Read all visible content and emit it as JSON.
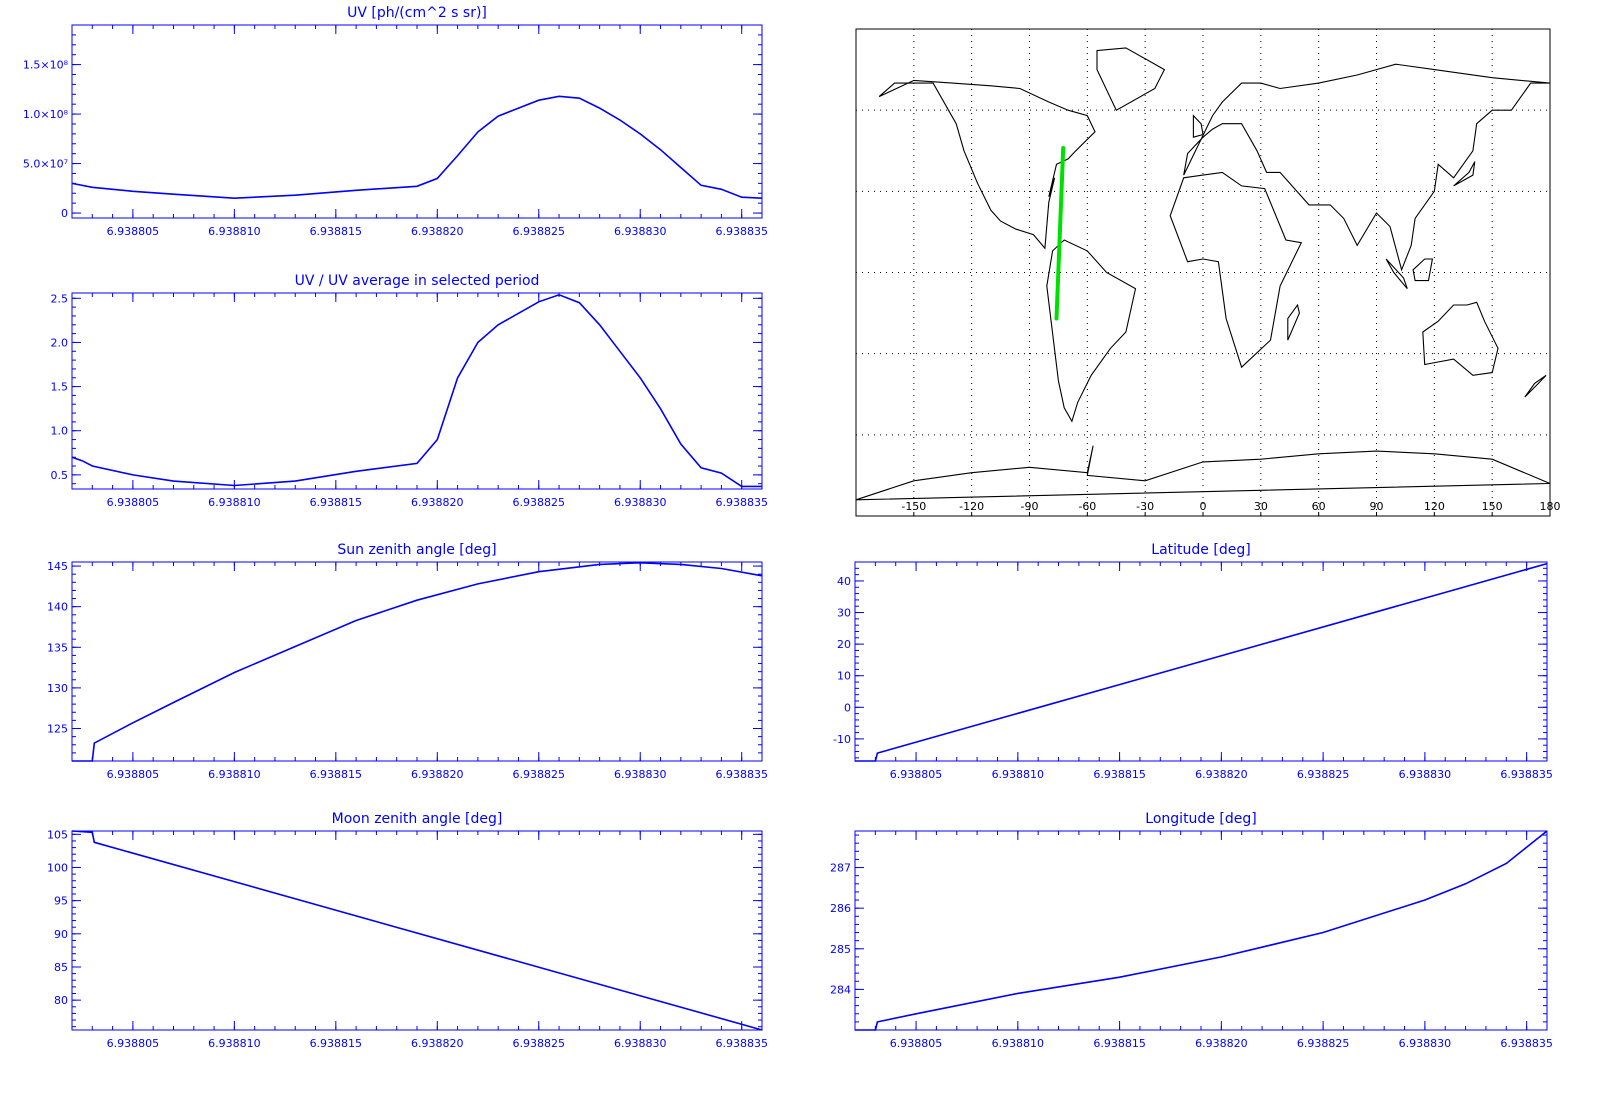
{
  "style": {
    "plot_color": "#0000ff",
    "map_color": "#000000",
    "track_color": "#00e000",
    "background": "#ffffff"
  },
  "chart_data": [
    {
      "id": "uv",
      "type": "line",
      "title": "UV [ph/(cm^2 s sr)]",
      "xlim": [
        6.938802,
        6.938836
      ],
      "ylim": [
        -5000000.0,
        190000000.0
      ],
      "yticks": [
        0,
        50000000,
        100000000,
        150000000
      ],
      "ytick_labels": [
        "0",
        "5.0×10⁷",
        "1.0×10⁸",
        "1.5×10⁸"
      ],
      "xticks": [
        6.938805,
        6.93881,
        6.938815,
        6.93882,
        6.938825,
        6.93883,
        6.938835
      ],
      "xtick_labels": [
        "6.938805",
        "6.938810",
        "6.938815",
        "6.938820",
        "6.938825",
        "6.938830",
        "6.938835"
      ],
      "x": [
        6.938802,
        6.938803,
        6.938805,
        6.938807,
        6.93881,
        6.938813,
        6.938816,
        6.938819,
        6.93882,
        6.938821,
        6.938822,
        6.938823,
        6.938824,
        6.938825,
        6.938826,
        6.938827,
        6.938828,
        6.938829,
        6.93883,
        6.938831,
        6.938832,
        6.938833,
        6.938834,
        6.938835,
        6.938836
      ],
      "y": [
        30000000,
        26000000,
        22000000,
        19000000,
        15000000,
        18000000,
        23000000,
        27000000,
        35000000,
        58000000,
        82000000,
        98000000,
        106000000,
        114000000,
        118000000,
        116000000,
        106000000,
        94000000,
        80000000,
        64000000,
        46000000,
        28000000,
        24000000,
        16000000,
        15000000
      ]
    },
    {
      "id": "uv_ratio",
      "type": "line",
      "title": "UV / UV average in selected period",
      "xlim": [
        6.938802,
        6.938836
      ],
      "ylim": [
        0.34,
        2.56
      ],
      "yticks": [
        0.5,
        1.0,
        1.5,
        2.0,
        2.5
      ],
      "ytick_labels": [
        "0.5",
        "1.0",
        "1.5",
        "2.0",
        "2.5"
      ],
      "xticks": [
        6.938805,
        6.93881,
        6.938815,
        6.93882,
        6.938825,
        6.93883,
        6.938835
      ],
      "xtick_labels": [
        "6.938805",
        "6.938810",
        "6.938815",
        "6.938820",
        "6.938825",
        "6.938830",
        "6.938835"
      ],
      "x": [
        6.938802,
        6.9388025,
        6.938803,
        6.938805,
        6.938807,
        6.93881,
        6.938813,
        6.938816,
        6.938819,
        6.93882,
        6.938821,
        6.938822,
        6.938823,
        6.938824,
        6.938825,
        6.938826,
        6.938827,
        6.938828,
        6.938829,
        6.93883,
        6.938831,
        6.938832,
        6.938833,
        6.938834,
        6.938835,
        6.938836
      ],
      "y": [
        0.7,
        0.66,
        0.6,
        0.5,
        0.43,
        0.38,
        0.43,
        0.54,
        0.63,
        0.9,
        1.6,
        2.0,
        2.2,
        2.33,
        2.46,
        2.54,
        2.45,
        2.2,
        1.9,
        1.6,
        1.25,
        0.85,
        0.58,
        0.52,
        0.37,
        0.37
      ]
    },
    {
      "id": "sun",
      "type": "line",
      "title": "Sun zenith angle [deg]",
      "xlim": [
        6.938802,
        6.938836
      ],
      "ylim": [
        121,
        145.5
      ],
      "yticks": [
        125,
        130,
        135,
        140,
        145
      ],
      "ytick_labels": [
        "125",
        "130",
        "135",
        "140",
        "145"
      ],
      "xticks": [
        6.938805,
        6.93881,
        6.938815,
        6.93882,
        6.938825,
        6.93883,
        6.938835
      ],
      "xtick_labels": [
        "6.938805",
        "6.938810",
        "6.938815",
        "6.938820",
        "6.938825",
        "6.938830",
        "6.938835"
      ],
      "x": [
        6.938802,
        6.938803,
        6.9388031,
        6.938805,
        6.938807,
        6.93881,
        6.938813,
        6.938816,
        6.938819,
        6.938822,
        6.938825,
        6.938828,
        6.93883,
        6.938832,
        6.938834,
        6.938836
      ],
      "y": [
        121,
        121,
        123.2,
        125.7,
        128.2,
        131.9,
        135.1,
        138.3,
        140.8,
        142.8,
        144.3,
        145.2,
        145.4,
        145.2,
        144.7,
        143.8
      ]
    },
    {
      "id": "lat",
      "type": "line",
      "title": "Latitude [deg]",
      "xlim": [
        6.938802,
        6.938836
      ],
      "ylim": [
        -17,
        46
      ],
      "yticks": [
        -10,
        0,
        10,
        20,
        30,
        40
      ],
      "ytick_labels": [
        "-10",
        "0",
        "10",
        "20",
        "30",
        "40"
      ],
      "xticks": [
        6.938805,
        6.93881,
        6.938815,
        6.93882,
        6.938825,
        6.93883,
        6.938835
      ],
      "xtick_labels": [
        "6.938805",
        "6.938810",
        "6.938815",
        "6.938820",
        "6.938825",
        "6.938830",
        "6.938835"
      ],
      "x": [
        6.938802,
        6.938803,
        6.9388031,
        6.938836
      ],
      "y": [
        -17,
        -17,
        -14.5,
        45.5
      ]
    },
    {
      "id": "moon",
      "type": "line",
      "title": "Moon zenith angle [deg]",
      "xlim": [
        6.938802,
        6.938836
      ],
      "ylim": [
        75.5,
        105.5
      ],
      "yticks": [
        80,
        85,
        90,
        95,
        100,
        105
      ],
      "ytick_labels": [
        "80",
        "85",
        "90",
        "95",
        "100",
        "105"
      ],
      "xticks": [
        6.938805,
        6.93881,
        6.938815,
        6.93882,
        6.938825,
        6.93883,
        6.938835
      ],
      "xtick_labels": [
        "6.938805",
        "6.938810",
        "6.938815",
        "6.938820",
        "6.938825",
        "6.938830",
        "6.938835"
      ],
      "x": [
        6.938802,
        6.938803,
        6.9388031,
        6.938836
      ],
      "y": [
        105.5,
        105.3,
        103.8,
        75.5
      ]
    },
    {
      "id": "lon",
      "type": "line",
      "title": "Longitude [deg]",
      "xlim": [
        6.938802,
        6.938836
      ],
      "ylim": [
        283,
        287.9
      ],
      "yticks": [
        284,
        285,
        286,
        287
      ],
      "ytick_labels": [
        "284",
        "285",
        "286",
        "287"
      ],
      "xticks": [
        6.938805,
        6.93881,
        6.938815,
        6.93882,
        6.938825,
        6.93883,
        6.938835
      ],
      "xtick_labels": [
        "6.938805",
        "6.938810",
        "6.938815",
        "6.938820",
        "6.938825",
        "6.938830",
        "6.938835"
      ],
      "x": [
        6.938802,
        6.938803,
        6.9388031,
        6.938805,
        6.93881,
        6.938815,
        6.93882,
        6.938825,
        6.93883,
        6.938832,
        6.938834,
        6.938835,
        6.938836
      ],
      "y": [
        283,
        283,
        283.2,
        283.4,
        283.9,
        284.3,
        284.8,
        285.4,
        286.2,
        286.6,
        287.1,
        287.5,
        287.9
      ]
    }
  ],
  "map": {
    "type": "map",
    "lon_ticks": [
      -150,
      -120,
      -90,
      -60,
      -30,
      0,
      30,
      60,
      90,
      120,
      150,
      180
    ],
    "lon_tick_labels": [
      "-150",
      "-120",
      "-90",
      "-60",
      "-30",
      "0",
      "30",
      "60",
      "90",
      "120",
      "150",
      "180"
    ],
    "lon_range": [
      -180,
      180
    ],
    "lat_range": [
      -90,
      90
    ],
    "grid_lons": [
      -150,
      -120,
      -90,
      -60,
      -30,
      0,
      30,
      60,
      90,
      120,
      150
    ],
    "grid_lats": [
      -60,
      -30,
      0,
      30,
      60
    ],
    "track": {
      "lon": [
        -76,
        -72.5
      ],
      "lat": [
        -17,
        46
      ]
    },
    "continents": [
      {
        "name": "north-america",
        "lon": [
          -168,
          -160,
          -140,
          -128,
          -124,
          -117,
          -110,
          -105,
          -97,
          -88,
          -82,
          -80,
          -77,
          -80,
          -76,
          -70,
          -66,
          -56,
          -60,
          -70,
          -80,
          -95,
          -110,
          -130,
          -150,
          -168
        ],
        "lat": [
          65,
          70,
          70,
          55,
          45,
          33,
          23,
          19,
          16,
          14,
          9,
          26,
          35,
          28,
          40,
          42,
          45,
          52,
          58,
          60,
          63,
          68,
          69,
          70,
          71,
          65
        ]
      },
      {
        "name": "south-america",
        "lon": [
          -78,
          -72,
          -60,
          -50,
          -35,
          -40,
          -48,
          -58,
          -65,
          -68,
          -72,
          -75,
          -81,
          -78
        ],
        "lat": [
          8,
          12,
          8,
          0,
          -6,
          -22,
          -28,
          -38,
          -48,
          -55,
          -50,
          -40,
          -5,
          8
        ]
      },
      {
        "name": "greenland",
        "lon": [
          -55,
          -40,
          -20,
          -25,
          -45,
          -55
        ],
        "lat": [
          82,
          83,
          75,
          68,
          60,
          75
        ]
      },
      {
        "name": "eurasia",
        "lon": [
          -10,
          -8,
          0,
          5,
          10,
          20,
          28,
          33,
          40,
          55,
          57,
          66,
          73,
          80,
          90,
          97,
          103,
          108,
          110,
          120,
          122,
          130,
          140,
          142,
          150,
          160,
          170,
          180,
          180,
          150,
          120,
          100,
          80,
          60,
          40,
          30,
          20,
          10,
          5,
          -10
        ],
        "lat": [
          36,
          44,
          50,
          53,
          55,
          55,
          45,
          37,
          37,
          25,
          25,
          25,
          20,
          10,
          22,
          17,
          1,
          10,
          20,
          30,
          40,
          35,
          45,
          55,
          60,
          60,
          70,
          70,
          70,
          72,
          75,
          77,
          73,
          70,
          68,
          70,
          70,
          63,
          58,
          36
        ]
      },
      {
        "name": "africa",
        "lon": [
          -17,
          -10,
          0,
          10,
          20,
          32,
          43,
          51,
          40,
          35,
          20,
          12,
          8,
          0,
          -8,
          -17
        ],
        "lat": [
          21,
          35,
          36,
          37,
          32,
          31,
          12,
          11,
          -5,
          -25,
          -35,
          -17,
          4,
          5,
          4,
          21
        ]
      },
      {
        "name": "australia",
        "lon": [
          114,
          122,
          130,
          137,
          142,
          146,
          153,
          150,
          140,
          130,
          115,
          114
        ],
        "lat": [
          -22,
          -18,
          -12,
          -12,
          -11,
          -18,
          -28,
          -37,
          -38,
          -32,
          -34,
          -22
        ]
      },
      {
        "name": "antarctica",
        "lon": [
          -180,
          -150,
          -120,
          -90,
          -60,
          -57,
          -60,
          -30,
          0,
          30,
          60,
          90,
          120,
          150,
          180
        ],
        "lat": [
          -84,
          -77,
          -74,
          -72,
          -74,
          -64,
          -75,
          -77,
          -70,
          -69,
          -67,
          -66,
          -67,
          -69,
          -78
        ]
      },
      {
        "name": "madagascar",
        "lon": [
          44,
          50,
          49,
          44,
          44
        ],
        "lat": [
          -25,
          -15,
          -12,
          -17,
          -25
        ]
      },
      {
        "name": "japan",
        "lon": [
          130,
          135,
          140,
          141,
          138,
          130
        ],
        "lat": [
          32,
          34,
          36,
          41,
          37,
          32
        ]
      },
      {
        "name": "uk",
        "lon": [
          -5,
          0,
          -1,
          -5,
          -5
        ],
        "lat": [
          50,
          51,
          55,
          58,
          50
        ]
      },
      {
        "name": "new-zealand",
        "lon": [
          167,
          172,
          178,
          174,
          167
        ],
        "lat": [
          -46,
          -41,
          -38,
          -41,
          -46
        ]
      },
      {
        "name": "borneo",
        "lon": [
          109,
          115,
          119,
          117,
          110,
          109
        ],
        "lat": [
          1,
          5,
          5,
          -3,
          -3,
          1
        ]
      },
      {
        "name": "sumatra",
        "lon": [
          95,
          104,
          106,
          99,
          95
        ],
        "lat": [
          5,
          -2,
          -6,
          0,
          5
        ]
      }
    ]
  }
}
